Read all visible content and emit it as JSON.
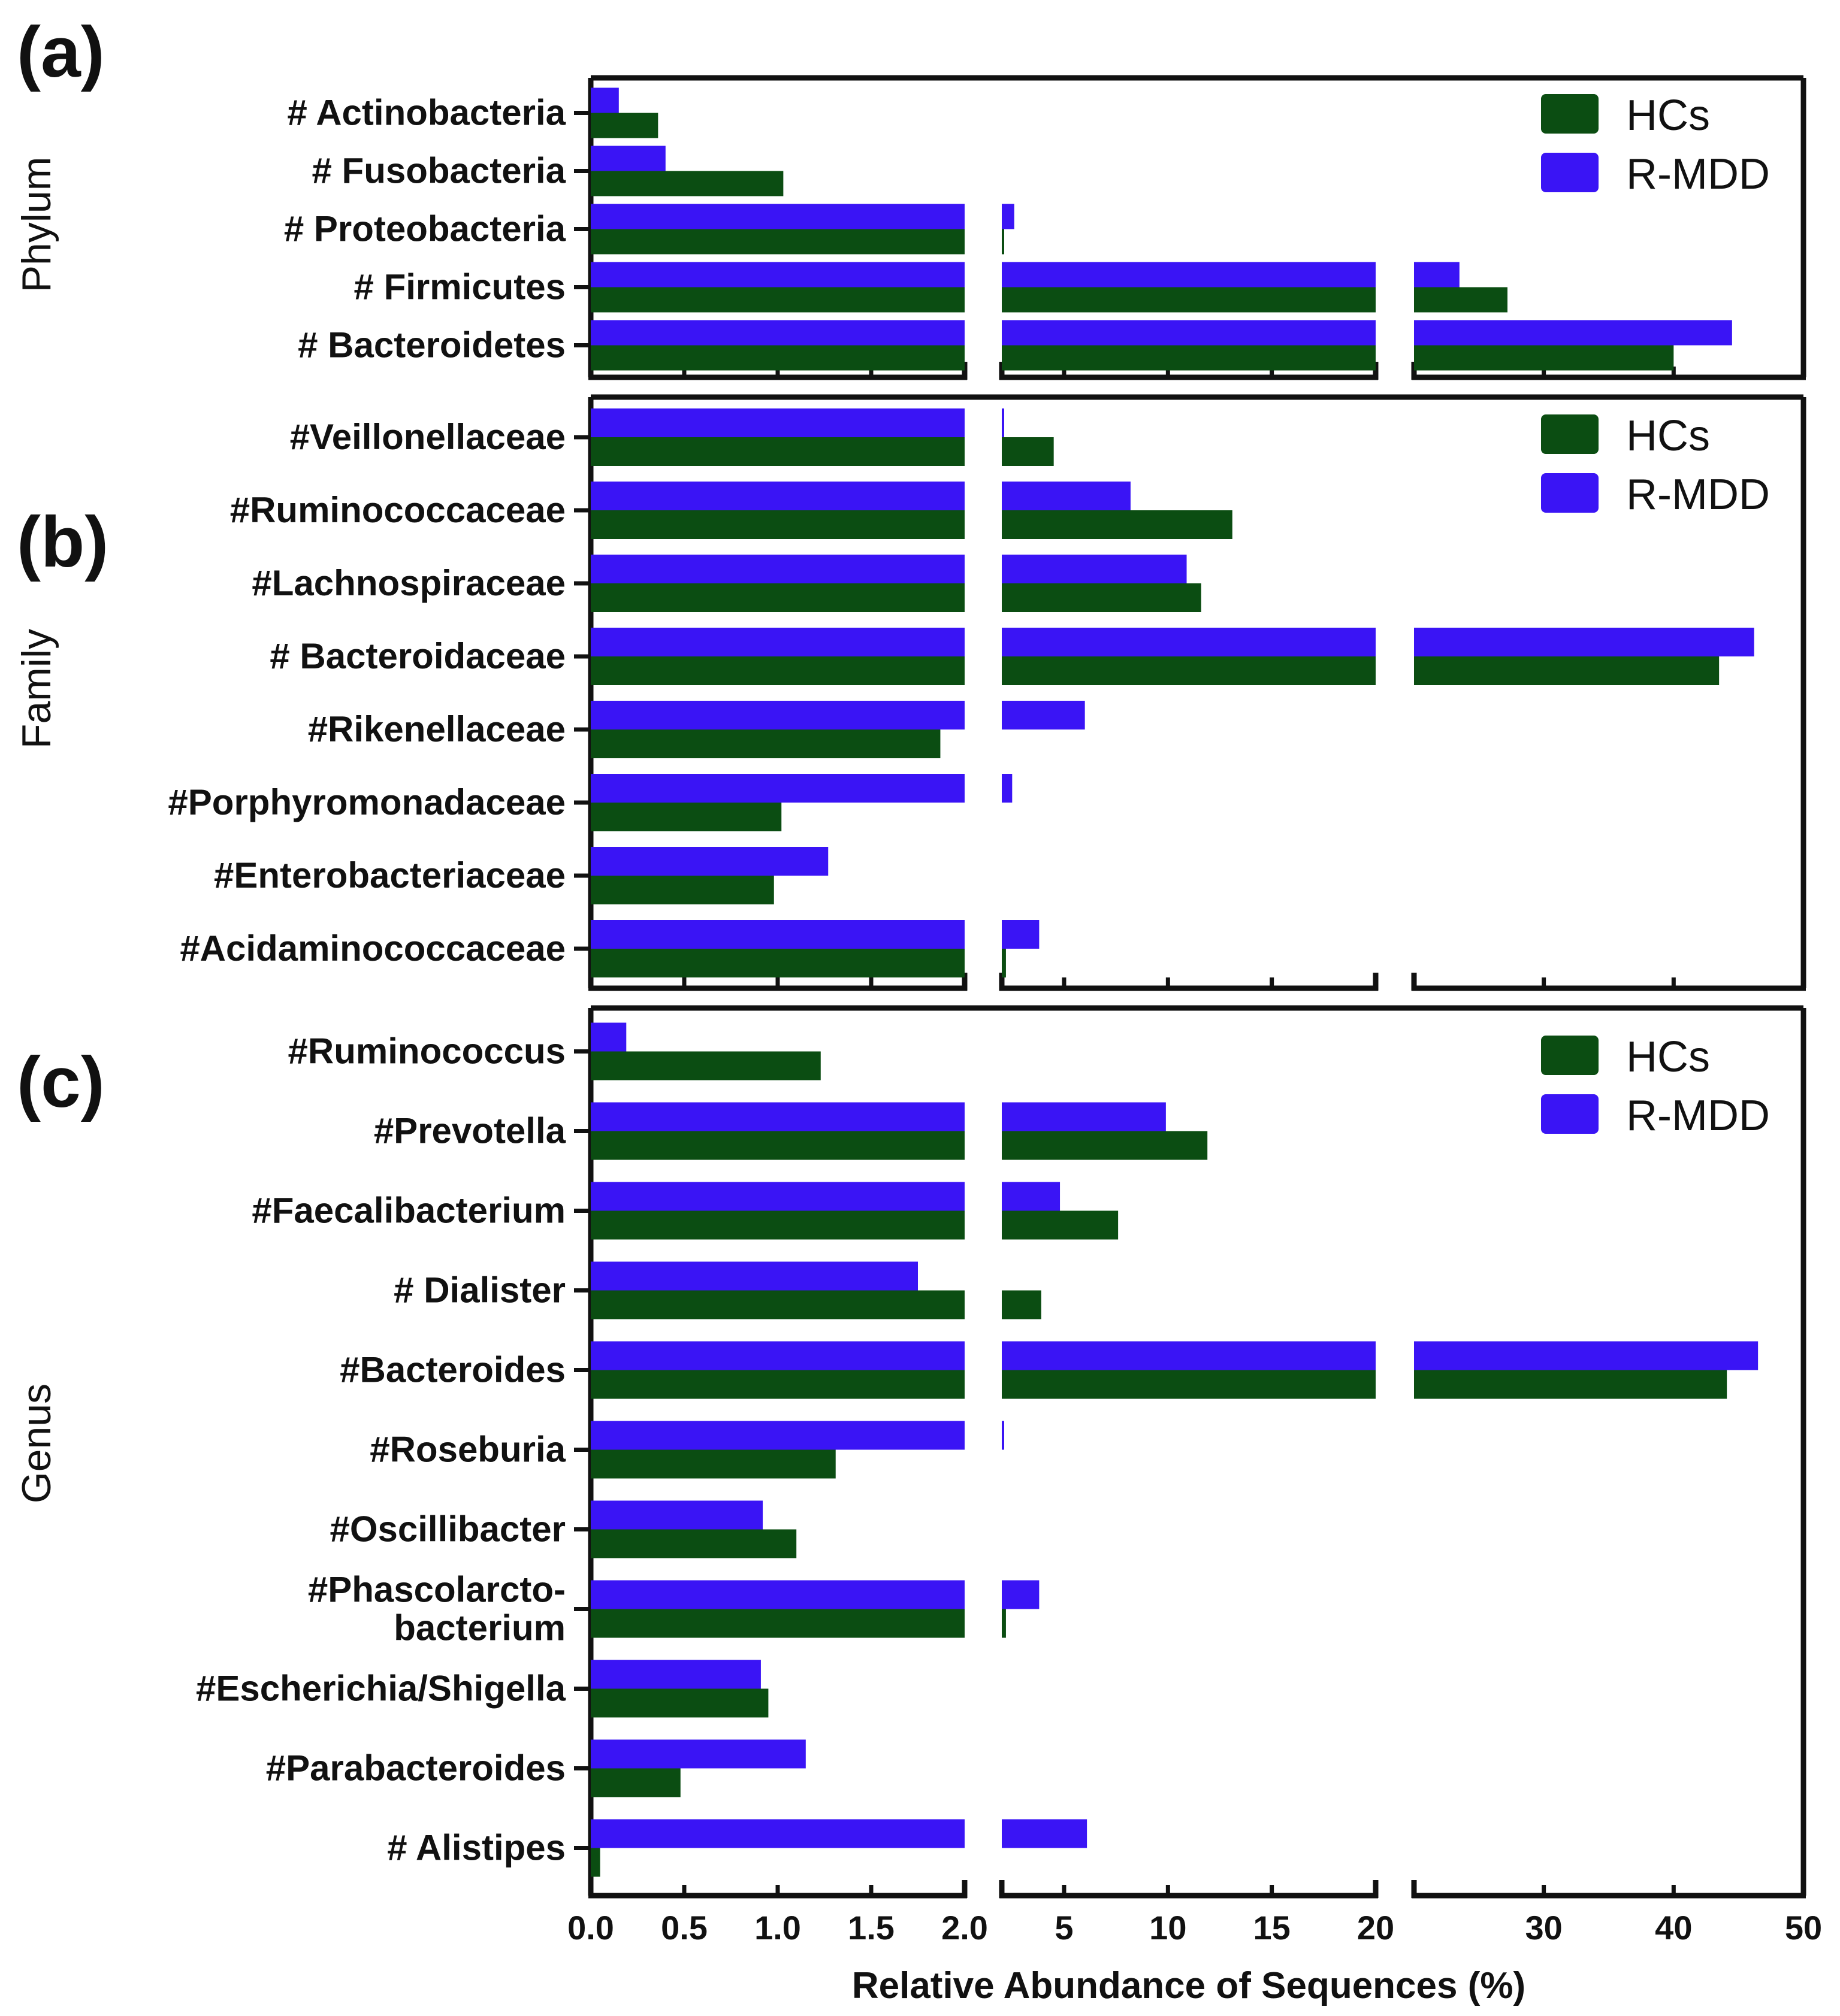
{
  "chart_data": {
    "type": "bar",
    "orientation": "horizontal",
    "xlabel": "Relative Abundance of Sequences (%)",
    "x_axis_segments": [
      {
        "range": [
          0,
          2
        ],
        "ticks": [
          0,
          0.5,
          1,
          1.5,
          2
        ],
        "tick_labels": [
          "0.0",
          "0.5",
          "1.0",
          "1.5",
          "2.0"
        ]
      },
      {
        "range": [
          2,
          20
        ],
        "ticks": [
          5,
          10,
          15,
          20
        ],
        "tick_labels": [
          "5",
          "10",
          "15",
          "20"
        ]
      },
      {
        "range": [
          20,
          50
        ],
        "ticks": [
          30,
          40,
          50
        ],
        "tick_labels": [
          "30",
          "40",
          "50"
        ]
      }
    ],
    "series_colors": {
      "HCs": "#0b4d12",
      "R-MDD": "#3a14f5"
    },
    "panels": [
      {
        "label": "(a)",
        "rank": "Phylum",
        "legend": [
          "HCs",
          "R-MDD"
        ],
        "categories": [
          "# Actinobacteria",
          "# Fusobacteria",
          "# Proteobacteria",
          "# Firmicutes",
          "# Bacteroidetes"
        ],
        "series": [
          {
            "name": "R-MDD",
            "values": [
              0.15,
              0.4,
              2.6,
              23.5,
              44.5
            ]
          },
          {
            "name": "HCs",
            "values": [
              0.36,
              1.03,
              2.05,
              27.2,
              40.0
            ]
          }
        ]
      },
      {
        "label": "(b)",
        "rank": "Family",
        "legend": [
          "HCs",
          "R-MDD"
        ],
        "categories": [
          "#Veillonellaceae",
          "#Ruminococcaceae",
          "#Lachnospiraceae",
          "# Bacteroidaceae",
          "#Rikenellaceae",
          "#Porphyromonadaceae",
          "#Enterobacteriaceae",
          "#Acidaminococcaceae"
        ],
        "series": [
          {
            "name": "R-MDD",
            "values": [
              2.1,
              8.2,
              10.9,
              46.2,
              6.0,
              2.5,
              1.27,
              3.8
            ]
          },
          {
            "name": "HCs",
            "values": [
              4.5,
              13.1,
              11.6,
              43.5,
              1.87,
              1.02,
              0.98,
              2.2
            ]
          }
        ]
      },
      {
        "label": "(c)",
        "rank": "Genus",
        "legend": [
          "HCs",
          "R-MDD"
        ],
        "categories": [
          "#Ruminococcus",
          "#Prevotella",
          "#Faecalibacterium",
          "# Dialister",
          "#Bacteroides",
          "#Roseburia",
          "#Oscillibacter",
          "#Phascolarcto-\nbacterium",
          "#Escherichia/Shigella",
          "#Parabacteroides",
          "# Alistipes"
        ],
        "series": [
          {
            "name": "R-MDD",
            "values": [
              0.19,
              9.9,
              4.8,
              1.75,
              46.5,
              2.1,
              0.92,
              3.8,
              0.91,
              1.15,
              6.1
            ]
          },
          {
            "name": "HCs",
            "values": [
              1.23,
              11.9,
              7.6,
              3.9,
              44.1,
              1.31,
              1.1,
              2.2,
              0.95,
              0.48,
              0.05
            ]
          }
        ]
      }
    ]
  }
}
